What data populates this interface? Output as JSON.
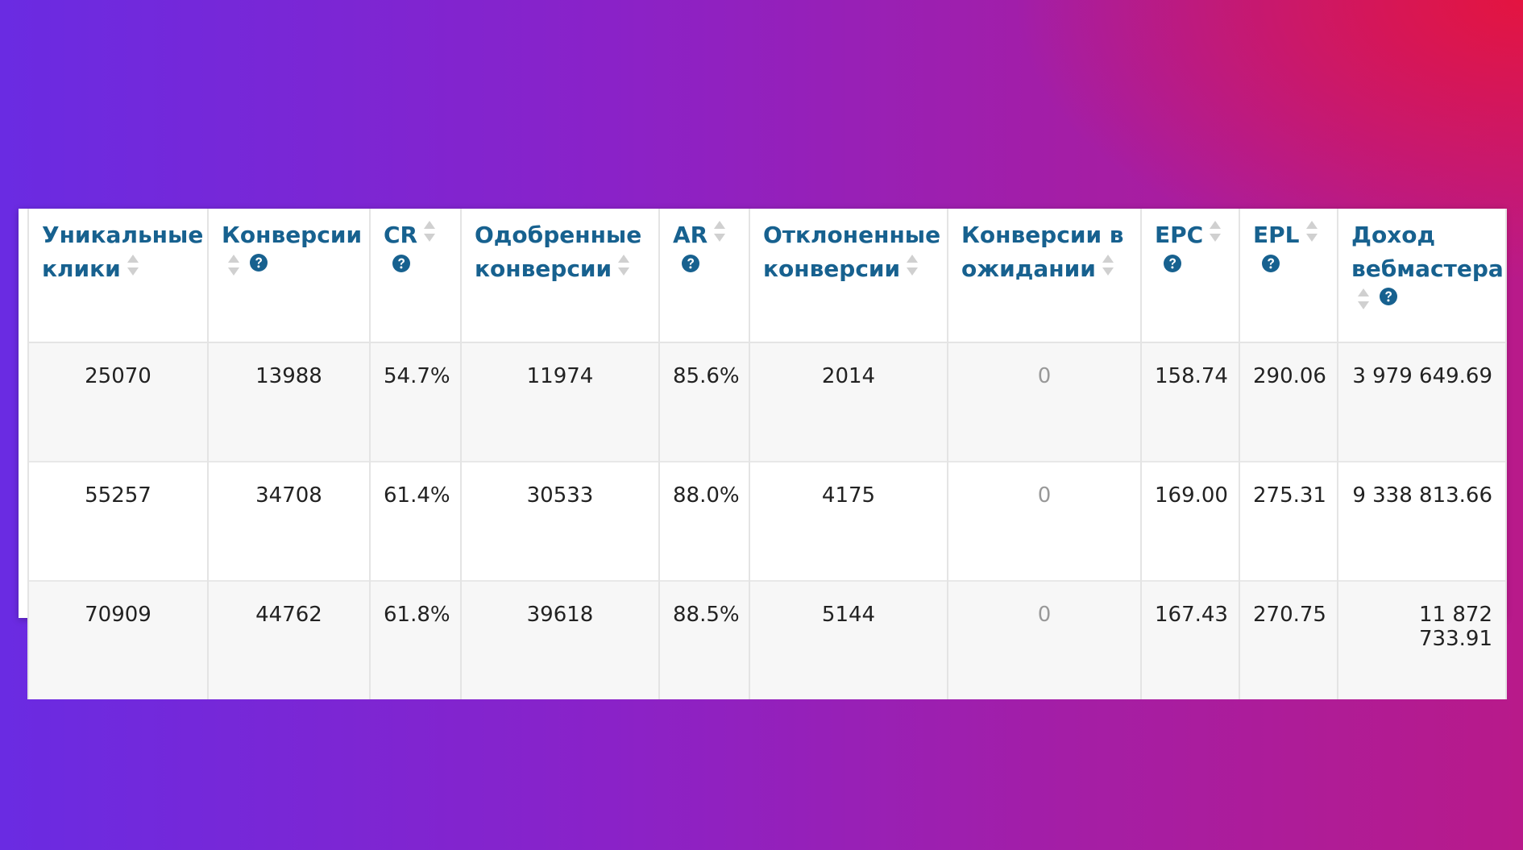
{
  "table": {
    "headers": [
      {
        "label": "Уникальные клики",
        "help": false
      },
      {
        "label": "Конверсии",
        "help": true
      },
      {
        "label": "CR",
        "help": true
      },
      {
        "label": "Одобренные конверсии",
        "help": false
      },
      {
        "label": "AR",
        "help": true
      },
      {
        "label": "Отклоненные конверсии",
        "help": false
      },
      {
        "label": "Конверсии в ожидании",
        "help": false
      },
      {
        "label": "EPC",
        "help": true
      },
      {
        "label": "EPL",
        "help": true
      },
      {
        "label": "Доход вебмастера",
        "help": true
      }
    ],
    "rows": [
      [
        "25070",
        "13988",
        "54.7%",
        "11974",
        "85.6%",
        "2014",
        "0",
        "158.74",
        "290.06",
        "3 979 649.69"
      ],
      [
        "55257",
        "34708",
        "61.4%",
        "30533",
        "88.0%",
        "4175",
        "0",
        "169.00",
        "275.31",
        "9 338 813.66"
      ],
      [
        "70909",
        "44762",
        "61.8%",
        "39618",
        "88.5%",
        "5144",
        "0",
        "167.43",
        "270.75",
        "11 872 733.91"
      ]
    ]
  }
}
